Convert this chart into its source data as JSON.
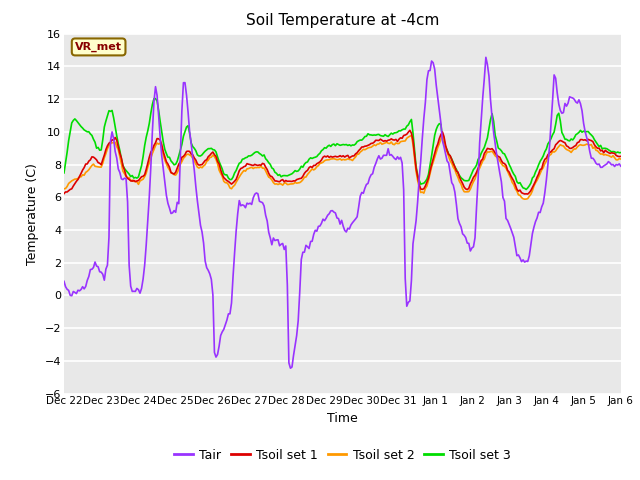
{
  "title": "Soil Temperature at -4cm",
  "xlabel": "Time",
  "ylabel": "Temperature (C)",
  "ylim": [
    -6,
    16
  ],
  "yticks": [
    -6,
    -4,
    -2,
    0,
    2,
    4,
    6,
    8,
    10,
    12,
    14,
    16
  ],
  "fig_bg_color": "#ffffff",
  "plot_bg_color": "#e8e8e8",
  "grid_color": "#ffffff",
  "line_colors": {
    "Tair": "#9933ff",
    "Tsoil1": "#dd0000",
    "Tsoil2": "#ff9900",
    "Tsoil3": "#00dd00"
  },
  "legend_labels": [
    "Tair",
    "Tsoil set 1",
    "Tsoil set 2",
    "Tsoil set 3"
  ],
  "annotation_text": "VR_met",
  "x_tick_labels": [
    "Dec 22",
    "Dec 23",
    "Dec 24",
    "Dec 25",
    "Dec 26",
    "Dec 27",
    "Dec 28",
    "Dec 29",
    "Dec 30",
    "Dec 31",
    "Jan 1",
    "Jan 2",
    "Jan 3",
    "Jan 4",
    "Jan 5",
    "Jan 6"
  ]
}
